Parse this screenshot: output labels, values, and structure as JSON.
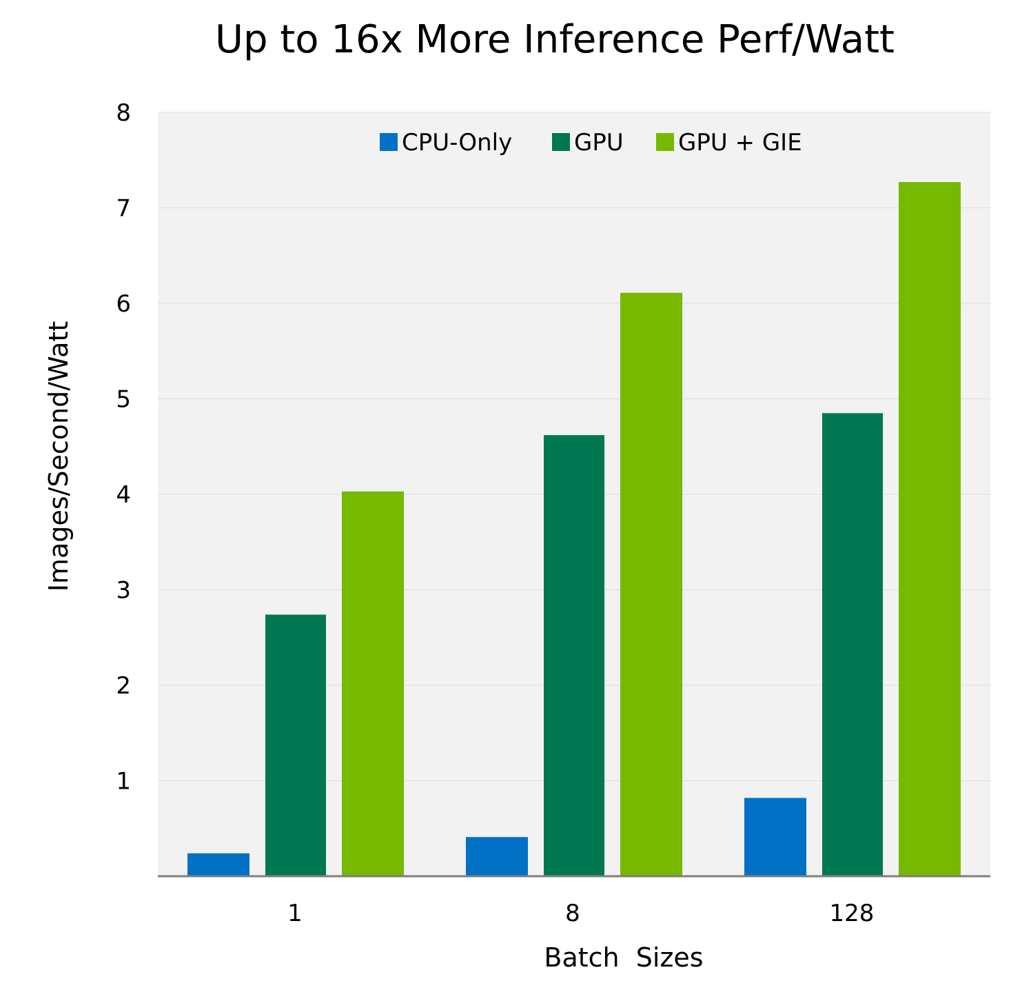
{
  "chart_data": {
    "type": "bar",
    "title": "Up to 16x More Inference Perf/Watt",
    "xlabel": "Batch  Sizes",
    "ylabel": "Images/Second/Watt",
    "categories": [
      "1",
      "8",
      "128"
    ],
    "series": [
      {
        "name": "CPU-Only",
        "color": "#0071c5",
        "values": [
          0.24,
          0.41,
          0.82
        ]
      },
      {
        "name": "GPU",
        "color": "#027852",
        "values": [
          2.74,
          4.62,
          4.85
        ]
      },
      {
        "name": "GPU + GIE",
        "color": "#76b900",
        "values": [
          4.03,
          6.11,
          7.27
        ]
      }
    ],
    "ylim": [
      0,
      8
    ],
    "yticks": [
      "1",
      "2",
      "3",
      "4",
      "5",
      "6",
      "7",
      "8"
    ],
    "grid": true,
    "legend_position": "top-center",
    "plot_background": "#f2f2f2"
  }
}
